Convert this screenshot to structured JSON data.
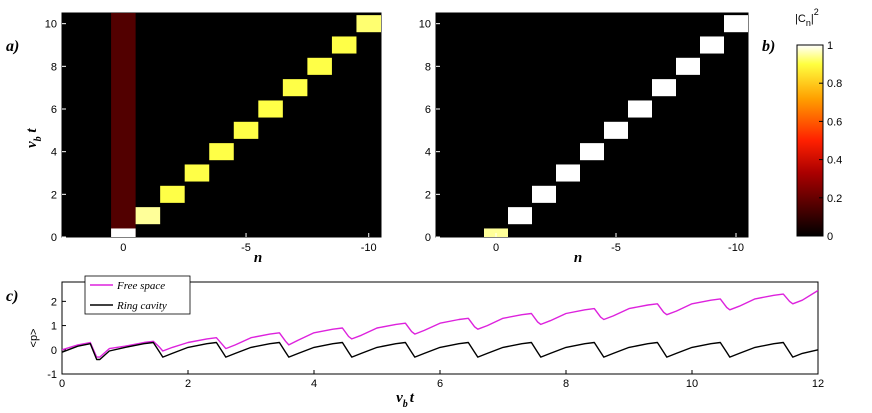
{
  "chart_data": [
    {
      "type": "heatmap",
      "panel_label": "a)",
      "xlabel": "n",
      "ylabel_main": "v",
      "ylabel_sub": "b",
      "ylabel_tail": " t",
      "xlim": [
        2.5,
        -10.5
      ],
      "ylim": [
        0,
        10.5
      ],
      "x_ticks": [
        0,
        -5,
        -10
      ],
      "x_tick_labels": [
        "0",
        "-5",
        "-10"
      ],
      "y_ticks": [
        0,
        2,
        4,
        6,
        8,
        10
      ],
      "y_tick_labels": [
        "0",
        "2",
        "4",
        "6",
        "8",
        "10"
      ],
      "background_column": {
        "n": 0,
        "intensity": 0.12
      },
      "cells": [
        {
          "n": 0,
          "t0": 0.0,
          "t1": 0.4,
          "v": 1.0
        },
        {
          "n": -1,
          "t0": 0.6,
          "t1": 1.4,
          "v": 0.9
        },
        {
          "n": -2,
          "t0": 1.6,
          "t1": 2.4,
          "v": 0.82
        },
        {
          "n": -3,
          "t0": 2.6,
          "t1": 3.4,
          "v": 0.82
        },
        {
          "n": -4,
          "t0": 3.6,
          "t1": 4.4,
          "v": 0.82
        },
        {
          "n": -5,
          "t0": 4.6,
          "t1": 5.4,
          "v": 0.82
        },
        {
          "n": -6,
          "t0": 5.6,
          "t1": 6.4,
          "v": 0.82
        },
        {
          "n": -7,
          "t0": 6.6,
          "t1": 7.4,
          "v": 0.82
        },
        {
          "n": -8,
          "t0": 7.6,
          "t1": 8.4,
          "v": 0.82
        },
        {
          "n": -9,
          "t0": 8.6,
          "t1": 9.4,
          "v": 0.82
        },
        {
          "n": -10,
          "t0": 9.6,
          "t1": 10.4,
          "v": 0.86
        }
      ]
    },
    {
      "type": "heatmap",
      "panel_label": "b)",
      "xlabel": "n",
      "xlim": [
        2.5,
        -10.5
      ],
      "ylim": [
        0,
        10.5
      ],
      "x_ticks": [
        0,
        -5,
        -10
      ],
      "x_tick_labels": [
        "0",
        "-5",
        "-10"
      ],
      "y_ticks": [
        0,
        2,
        4,
        6,
        8,
        10
      ],
      "y_tick_labels": [
        "0",
        "2",
        "4",
        "6",
        "8",
        "10"
      ],
      "cells": [
        {
          "n": 0,
          "t0": 0.0,
          "t1": 0.4,
          "v": 0.9
        },
        {
          "n": -1,
          "t0": 0.6,
          "t1": 1.4,
          "v": 1.0
        },
        {
          "n": -2,
          "t0": 1.6,
          "t1": 2.4,
          "v": 1.0
        },
        {
          "n": -3,
          "t0": 2.6,
          "t1": 3.4,
          "v": 1.0
        },
        {
          "n": -4,
          "t0": 3.6,
          "t1": 4.4,
          "v": 1.0
        },
        {
          "n": -5,
          "t0": 4.6,
          "t1": 5.4,
          "v": 1.0
        },
        {
          "n": -6,
          "t0": 5.6,
          "t1": 6.4,
          "v": 1.0
        },
        {
          "n": -7,
          "t0": 6.6,
          "t1": 7.4,
          "v": 1.0
        },
        {
          "n": -8,
          "t0": 7.6,
          "t1": 8.4,
          "v": 1.0
        },
        {
          "n": -9,
          "t0": 8.6,
          "t1": 9.4,
          "v": 1.0
        },
        {
          "n": -10,
          "t0": 9.6,
          "t1": 10.4,
          "v": 1.0
        }
      ]
    },
    {
      "type": "colorbar",
      "title_main": "|C",
      "title_sub": "n",
      "title_tail": "|",
      "title_sup": "2",
      "range": [
        0,
        1
      ],
      "ticks": [
        0,
        0.2,
        0.4,
        0.6,
        0.8,
        1
      ],
      "tick_labels": [
        "0",
        "0.2",
        "0.4",
        "0.6",
        "0.8",
        "1"
      ]
    },
    {
      "type": "line",
      "panel_label": "c)",
      "xlabel_main": "v",
      "xlabel_sub": "b",
      "xlabel_tail": "t",
      "ylabel": "<p>",
      "xlim": [
        0,
        12
      ],
      "ylim": [
        -1,
        2.8
      ],
      "x_ticks": [
        0,
        2,
        4,
        6,
        8,
        10,
        12
      ],
      "x_tick_labels": [
        "0",
        "2",
        "4",
        "6",
        "8",
        "10",
        "12"
      ],
      "y_ticks": [
        -1,
        0,
        1,
        2
      ],
      "y_tick_labels": [
        "-1",
        "0",
        "1",
        "2"
      ],
      "series": [
        {
          "name": "Free space",
          "color": "#dd22dd",
          "x": [
            0,
            0.25,
            0.45,
            0.55,
            0.6,
            0.75,
            1.0,
            1.3,
            1.45,
            1.55,
            1.6,
            1.75,
            2.0,
            2.3,
            2.45,
            2.55,
            2.6,
            2.75,
            3.0,
            3.3,
            3.45,
            3.55,
            3.6,
            3.75,
            4.0,
            4.3,
            4.45,
            4.55,
            4.6,
            4.75,
            5.0,
            5.3,
            5.45,
            5.55,
            5.6,
            5.75,
            6.0,
            6.3,
            6.45,
            6.55,
            6.6,
            6.75,
            7.0,
            7.3,
            7.45,
            7.55,
            7.6,
            7.75,
            8.0,
            8.3,
            8.45,
            8.55,
            8.6,
            8.75,
            9.0,
            9.3,
            9.45,
            9.55,
            9.6,
            9.75,
            10.0,
            10.3,
            10.45,
            10.55,
            10.6,
            10.75,
            11.0,
            11.3,
            11.45,
            11.55,
            11.6,
            11.75,
            12.0
          ],
          "y": [
            0.0,
            0.2,
            0.3,
            -0.3,
            -0.3,
            0.05,
            0.15,
            0.3,
            0.35,
            0.1,
            -0.05,
            0.1,
            0.3,
            0.45,
            0.5,
            0.2,
            0.05,
            0.2,
            0.5,
            0.65,
            0.7,
            0.35,
            0.2,
            0.4,
            0.7,
            0.85,
            0.9,
            0.55,
            0.45,
            0.6,
            0.9,
            1.05,
            1.1,
            0.75,
            0.65,
            0.8,
            1.1,
            1.25,
            1.3,
            0.95,
            0.85,
            1.0,
            1.3,
            1.45,
            1.5,
            1.15,
            1.05,
            1.2,
            1.5,
            1.65,
            1.7,
            1.35,
            1.25,
            1.4,
            1.7,
            1.85,
            1.9,
            1.55,
            1.45,
            1.6,
            1.9,
            2.05,
            2.1,
            1.75,
            1.65,
            1.8,
            2.1,
            2.25,
            2.3,
            2.0,
            1.9,
            2.05,
            2.45
          ]
        },
        {
          "name": "Ring cavity",
          "color": "#000000",
          "x": [
            0,
            0.25,
            0.45,
            0.55,
            0.6,
            0.75,
            1.0,
            1.3,
            1.45,
            1.55,
            1.6,
            1.75,
            2.0,
            2.3,
            2.45,
            2.55,
            2.6,
            2.75,
            3.0,
            3.3,
            3.45,
            3.55,
            3.6,
            3.75,
            4.0,
            4.3,
            4.45,
            4.55,
            4.6,
            4.75,
            5.0,
            5.3,
            5.45,
            5.55,
            5.6,
            5.75,
            6.0,
            6.3,
            6.45,
            6.55,
            6.6,
            6.75,
            7.0,
            7.3,
            7.45,
            7.55,
            7.6,
            7.75,
            8.0,
            8.3,
            8.45,
            8.55,
            8.6,
            8.75,
            9.0,
            9.3,
            9.45,
            9.55,
            9.6,
            9.75,
            10.0,
            10.3,
            10.45,
            10.55,
            10.6,
            10.75,
            11.0,
            11.3,
            11.45,
            11.55,
            11.6,
            11.75,
            12.0
          ],
          "y": [
            -0.1,
            0.15,
            0.25,
            -0.4,
            -0.4,
            -0.05,
            0.1,
            0.25,
            0.3,
            -0.1,
            -0.3,
            -0.15,
            0.1,
            0.25,
            0.3,
            -0.1,
            -0.3,
            -0.15,
            0.1,
            0.25,
            0.3,
            -0.1,
            -0.3,
            -0.15,
            0.1,
            0.25,
            0.3,
            -0.1,
            -0.3,
            -0.15,
            0.1,
            0.25,
            0.3,
            -0.1,
            -0.3,
            -0.15,
            0.1,
            0.25,
            0.3,
            -0.1,
            -0.3,
            -0.15,
            0.1,
            0.25,
            0.3,
            -0.1,
            -0.3,
            -0.15,
            0.1,
            0.25,
            0.3,
            -0.1,
            -0.3,
            -0.15,
            0.1,
            0.25,
            0.3,
            -0.1,
            -0.3,
            -0.15,
            0.1,
            0.25,
            0.3,
            -0.1,
            -0.3,
            -0.15,
            0.1,
            0.25,
            0.3,
            -0.1,
            -0.3,
            -0.15,
            0.0
          ]
        }
      ]
    }
  ]
}
